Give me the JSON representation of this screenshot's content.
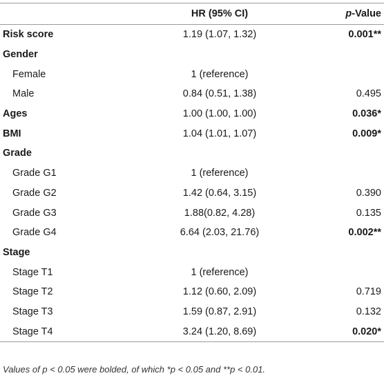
{
  "table": {
    "headers": {
      "col1": "",
      "col2": "HR (95% CI)",
      "col3_prefix": "p",
      "col3_suffix": "-Value"
    },
    "rows": [
      {
        "label": "Risk score",
        "hr": "1.19 (1.07, 1.32)",
        "p": "0.001**",
        "p_bold": true,
        "type": "main"
      },
      {
        "label": "Gender",
        "hr": "",
        "p": "",
        "p_bold": false,
        "type": "main"
      },
      {
        "label": "Female",
        "hr": "1 (reference)",
        "p": "",
        "p_bold": false,
        "type": "sub"
      },
      {
        "label": "Male",
        "hr": "0.84 (0.51, 1.38)",
        "p": "0.495",
        "p_bold": false,
        "type": "sub"
      },
      {
        "label": "Ages",
        "hr": "1.00 (1.00, 1.00)",
        "p": "0.036*",
        "p_bold": true,
        "type": "main"
      },
      {
        "label": "BMI",
        "hr": "1.04 (1.01, 1.07)",
        "p": "0.009*",
        "p_bold": true,
        "type": "main"
      },
      {
        "label": "Grade",
        "hr": "",
        "p": "",
        "p_bold": false,
        "type": "main"
      },
      {
        "label": "Grade G1",
        "hr": "1 (reference)",
        "p": "",
        "p_bold": false,
        "type": "sub"
      },
      {
        "label": "Grade G2",
        "hr": "1.42 (0.64, 3.15)",
        "p": "0.390",
        "p_bold": false,
        "type": "sub"
      },
      {
        "label": "Grade G3",
        "hr": "1.88(0.82, 4.28)",
        "p": "0.135",
        "p_bold": false,
        "type": "sub"
      },
      {
        "label": "Grade G4",
        "hr": "6.64 (2.03, 21.76)",
        "p": "0.002**",
        "p_bold": true,
        "type": "sub"
      },
      {
        "label": "Stage",
        "hr": "",
        "p": "",
        "p_bold": false,
        "type": "main"
      },
      {
        "label": "Stage T1",
        "hr": "1 (reference)",
        "p": "",
        "p_bold": false,
        "type": "sub"
      },
      {
        "label": "Stage T2",
        "hr": "1.12 (0.60, 2.09)",
        "p": "0.719",
        "p_bold": false,
        "type": "sub"
      },
      {
        "label": "Stage T3",
        "hr": "1.59 (0.87, 2.91)",
        "p": "0.132",
        "p_bold": false,
        "type": "sub"
      },
      {
        "label": "Stage T4",
        "hr": "3.24 (1.20, 8.69)",
        "p": "0.020*",
        "p_bold": true,
        "type": "sub"
      }
    ]
  },
  "footnote": "Values of p < 0.05 were bolded, of which *p < 0.05 and **p < 0.01."
}
